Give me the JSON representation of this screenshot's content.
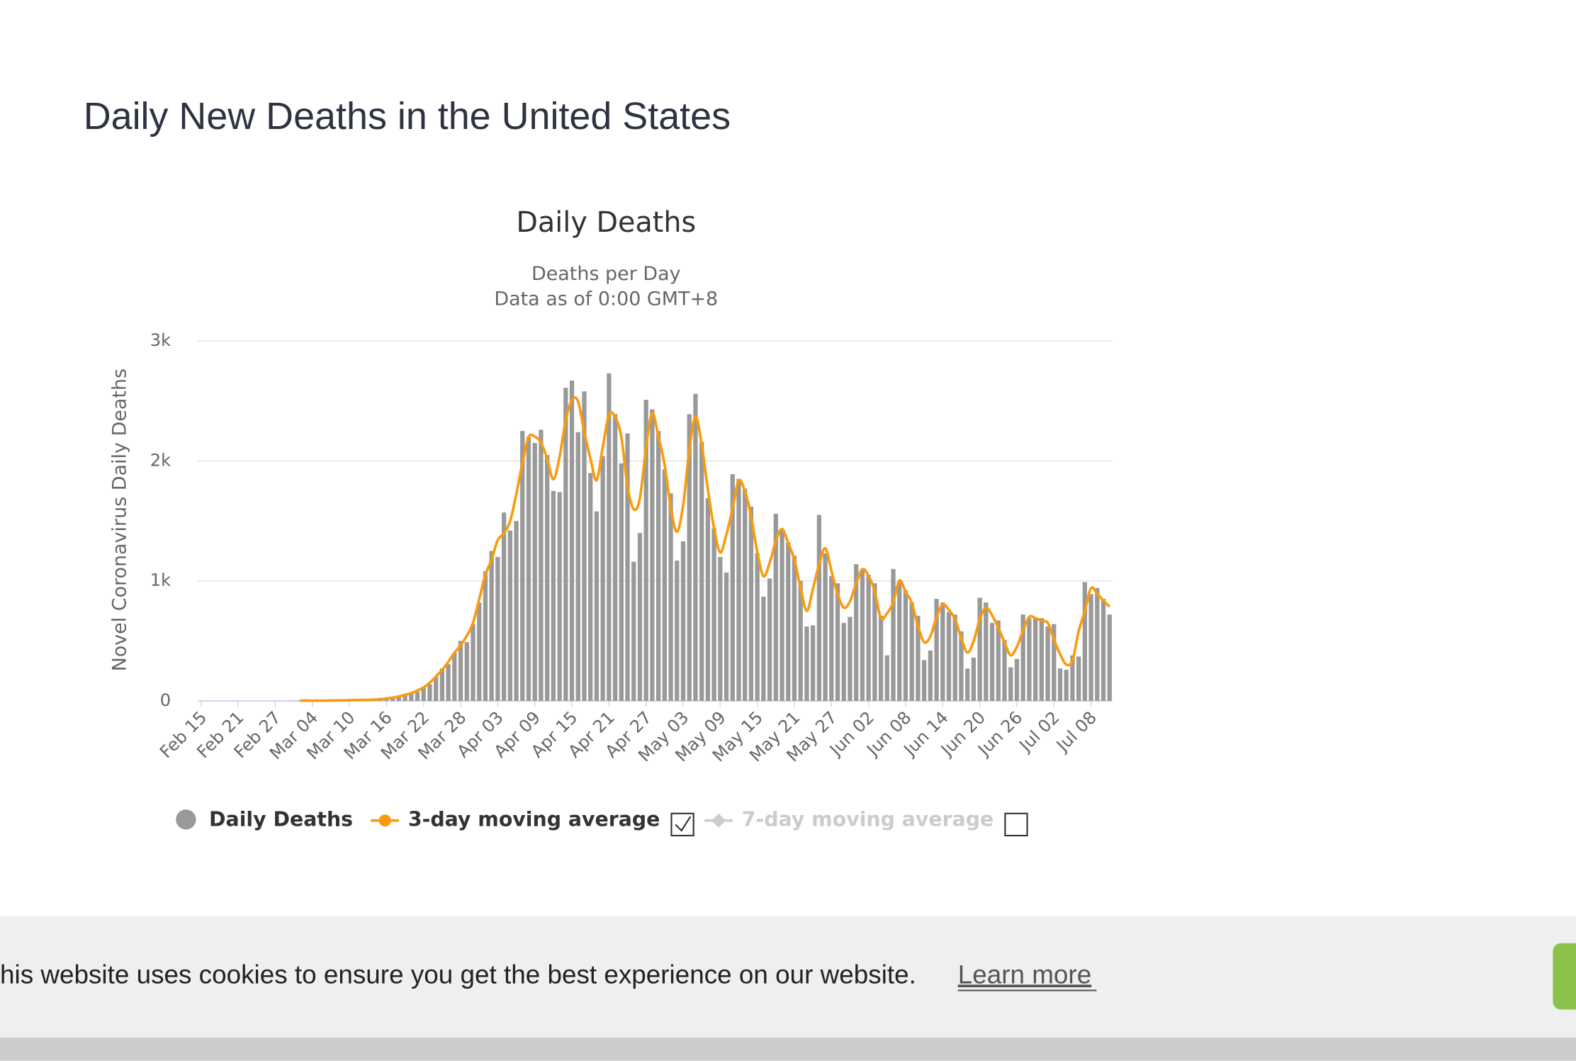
{
  "page": {
    "heading": "Daily New Deaths in the United States"
  },
  "chart_data": {
    "type": "bar",
    "title": "Daily Deaths",
    "subtitle": "Deaths per Day",
    "subtitle2": "Data as of 0:00 GMT+8",
    "y_label": "Novel Coronavirus Daily Deaths",
    "ylim": [
      0,
      3000
    ],
    "yticks": [
      0,
      {
        "value": 1000,
        "label": "1k"
      },
      {
        "value": 2000,
        "label": "2k"
      },
      {
        "value": 3000,
        "label": "3k"
      }
    ],
    "grid": true,
    "categories": [
      "Feb 15",
      null,
      null,
      null,
      null,
      null,
      "Feb 21",
      null,
      null,
      null,
      null,
      null,
      "Feb 27",
      null,
      null,
      null,
      null,
      null,
      "Mar 04",
      null,
      null,
      null,
      null,
      null,
      "Mar 10",
      null,
      null,
      null,
      null,
      null,
      "Mar 16",
      null,
      null,
      null,
      null,
      null,
      "Mar 22",
      null,
      null,
      null,
      null,
      null,
      "Mar 28",
      null,
      null,
      null,
      null,
      null,
      "Apr 03",
      null,
      null,
      null,
      null,
      null,
      "Apr 09",
      null,
      null,
      null,
      null,
      null,
      "Apr 15",
      null,
      null,
      null,
      null,
      null,
      "Apr 21",
      null,
      null,
      null,
      null,
      null,
      "Apr 27",
      null,
      null,
      null,
      null,
      null,
      "May 03",
      null,
      null,
      null,
      null,
      null,
      "May 09",
      null,
      null,
      null,
      null,
      null,
      "May 15",
      null,
      null,
      null,
      null,
      null,
      "May 21",
      null,
      null,
      null,
      null,
      null,
      "May 27",
      null,
      null,
      null,
      null,
      null,
      "Jun 02",
      null,
      null,
      null,
      null,
      null,
      "Jun 08",
      null,
      null,
      null,
      null,
      null,
      "Jun 14",
      null,
      null,
      null,
      null,
      null,
      "Jun 20",
      null,
      null,
      null,
      null,
      null,
      "Jun 26",
      null,
      null,
      null,
      null,
      null,
      "Jul 02",
      null,
      null,
      null,
      null,
      null,
      "Jul 08",
      null,
      null,
      null
    ],
    "series": [
      {
        "name": "Daily Deaths",
        "color": "#999999",
        "kind": "bar",
        "values": [
          0,
          0,
          0,
          0,
          0,
          0,
          0,
          0,
          0,
          0,
          0,
          0,
          0,
          0,
          1,
          1,
          4,
          1,
          4,
          1,
          2,
          3,
          4,
          4,
          5,
          8,
          7,
          10,
          11,
          13,
          22,
          24,
          35,
          52,
          65,
          76,
          117,
          139,
          200,
          270,
          305,
          400,
          500,
          490,
          640,
          820,
          1080,
          1250,
          1200,
          1570,
          1420,
          1500,
          2250,
          2200,
          2150,
          2260,
          2050,
          1750,
          1740,
          2610,
          2670,
          2240,
          2580,
          1900,
          1580,
          2040,
          2730,
          2390,
          1980,
          2230,
          1160,
          1400,
          2510,
          2430,
          2250,
          1930,
          1730,
          1170,
          1330,
          2390,
          2560,
          2160,
          1690,
          1440,
          1200,
          1070,
          1890,
          1850,
          1770,
          1620,
          1230,
          870,
          1020,
          1560,
          1420,
          1320,
          1210,
          1000,
          620,
          630,
          1550,
          1230,
          1040,
          980,
          650,
          700,
          1140,
          1100,
          1050,
          980,
          710,
          380,
          1100,
          990,
          920,
          820,
          710,
          340,
          420,
          850,
          820,
          740,
          720,
          580,
          270,
          360,
          860,
          820,
          650,
          670,
          510,
          280,
          350,
          720,
          690,
          690,
          690,
          620,
          640,
          270,
          260,
          380,
          370,
          990,
          890,
          940,
          850,
          720
        ]
      },
      {
        "name": "3-day moving average",
        "color": "#f89c0e",
        "kind": "line",
        "values": [
          null,
          null,
          null,
          null,
          null,
          null,
          null,
          null,
          null,
          null,
          null,
          null,
          null,
          null,
          null,
          null,
          2,
          3,
          2,
          2,
          2,
          3,
          4,
          4,
          6,
          7,
          8,
          9,
          11,
          15,
          20,
          27,
          37,
          51,
          64,
          86,
          111,
          152,
          203,
          258,
          325,
          402,
          463,
          543,
          650,
          847,
          1050,
          1177,
          1340,
          1397,
          1497,
          1723,
          1983,
          2200,
          2203,
          2153,
          2020,
          1847,
          2033,
          2340,
          2507,
          2497,
          2240,
          2020,
          1840,
          2117,
          2387,
          2367,
          2200,
          1790,
          1597,
          1690,
          2113,
          2397,
          2203,
          1970,
          1610,
          1410,
          1630,
          2093,
          2370,
          2137,
          1763,
          1443,
          1237,
          1387,
          1603,
          1837,
          1747,
          1540,
          1240,
          1040,
          1150,
          1333,
          1433,
          1317,
          1177,
          943,
          750,
          933,
          1137,
          1273,
          1083,
          890,
          777,
          830,
          980,
          1097,
          1043,
          913,
          690,
          730,
          823,
          1003,
          910,
          817,
          623,
          490,
          537,
          697,
          803,
          760,
          680,
          523,
          403,
          497,
          680,
          777,
          713,
          610,
          487,
          380,
          450,
          587,
          700,
          690,
          667,
          650,
          510,
          390,
          303,
          337,
          580,
          750,
          940,
          893,
          837,
          785
        ]
      },
      {
        "name": "7-day moving average",
        "color": "#cccccc",
        "kind": "line",
        "visible": false
      }
    ]
  },
  "cookie_banner": {
    "text": "his website uses cookies to ensure you get the best experience on our website.",
    "link": "Learn more"
  }
}
